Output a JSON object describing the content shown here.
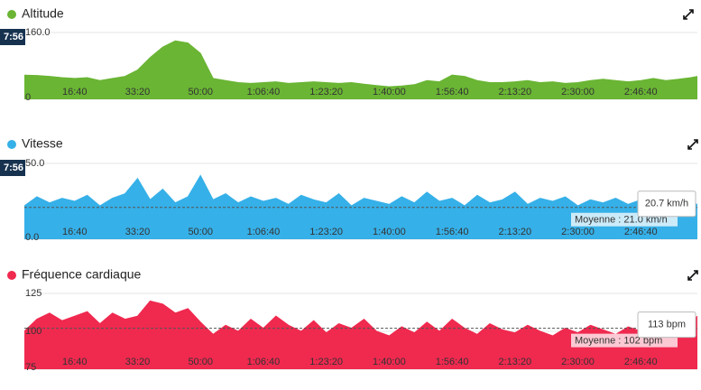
{
  "chart_data": [
    {
      "type": "area",
      "title": "Altitude",
      "color": "#6ab534",
      "cursor_label": "7:56",
      "x": [
        200,
        400,
        600,
        800,
        1000,
        1200,
        1400,
        1600,
        1800,
        2000,
        2200,
        2400,
        2600,
        2800,
        3000,
        3200,
        3400,
        3600,
        3800,
        4000,
        4200,
        4400,
        4600,
        4800,
        5000,
        5200,
        5400,
        5600,
        5800,
        6000,
        6200,
        6400,
        6600,
        6800,
        7000,
        7200,
        7400,
        7600,
        7800,
        8000,
        8200,
        8400,
        8600,
        8800,
        9000,
        9200,
        9400,
        9600,
        9800,
        10000,
        10200,
        10400,
        10600,
        10800,
        10900
      ],
      "values": [
        58,
        57,
        55,
        52,
        50,
        52,
        45,
        50,
        55,
        70,
        100,
        125,
        140,
        135,
        110,
        50,
        45,
        40,
        38,
        40,
        42,
        38,
        40,
        42,
        40,
        38,
        40,
        36,
        33,
        30,
        32,
        35,
        45,
        42,
        58,
        55,
        45,
        40,
        40,
        42,
        45,
        40,
        42,
        38,
        40,
        45,
        48,
        45,
        42,
        45,
        50,
        45,
        48,
        52,
        55
      ],
      "xlim": [
        200,
        10900
      ],
      "xticks": [
        {
          "value": 1000,
          "label": "16:40"
        },
        {
          "value": 2000,
          "label": "33:20"
        },
        {
          "value": 3000,
          "label": "50:00"
        },
        {
          "value": 4000,
          "label": "1:06:40"
        },
        {
          "value": 5000,
          "label": "1:23:20"
        },
        {
          "value": 6000,
          "label": "1:40:00"
        },
        {
          "value": 7000,
          "label": "1:56:40"
        },
        {
          "value": 8000,
          "label": "2:13:20"
        },
        {
          "value": 9000,
          "label": "2:30:00"
        },
        {
          "value": 10000,
          "label": "2:46:40"
        }
      ],
      "ylim": [
        0,
        160
      ],
      "yticks": [
        0,
        {
          "value": 160,
          "label": "160.0"
        }
      ]
    },
    {
      "type": "area",
      "title": "Vitesse",
      "color": "#36b0e8",
      "cursor_label": "7:56",
      "x": [
        200,
        400,
        600,
        800,
        1000,
        1200,
        1400,
        1600,
        1800,
        2000,
        2200,
        2400,
        2600,
        2800,
        3000,
        3200,
        3400,
        3600,
        3800,
        4000,
        4200,
        4400,
        4600,
        4800,
        5000,
        5200,
        5400,
        5600,
        5800,
        6000,
        6200,
        6400,
        6600,
        6800,
        7000,
        7200,
        7400,
        7600,
        7800,
        8000,
        8200,
        8400,
        8600,
        8800,
        9000,
        9200,
        9400,
        9600,
        9800,
        10000,
        10200,
        10400,
        10600,
        10800,
        10900
      ],
      "values": [
        22,
        28,
        24,
        27,
        25,
        29,
        22,
        27,
        30,
        40,
        26,
        33,
        24,
        28,
        42,
        26,
        30,
        24,
        28,
        25,
        27,
        23,
        29,
        26,
        24,
        30,
        22,
        27,
        25,
        23,
        28,
        24,
        31,
        25,
        27,
        22,
        29,
        24,
        26,
        31,
        23,
        27,
        25,
        28,
        22,
        26,
        24,
        27,
        23,
        26,
        22,
        25,
        27,
        24,
        23
      ],
      "average": 21.0,
      "average_label": "Moyenne : 21.0 km/h",
      "tooltip": "20.7 km/h",
      "xlim": [
        200,
        10900
      ],
      "xticks": [
        {
          "value": 1000,
          "label": "16:40"
        },
        {
          "value": 2000,
          "label": "33:20"
        },
        {
          "value": 3000,
          "label": "50:00"
        },
        {
          "value": 4000,
          "label": "1:06:40"
        },
        {
          "value": 5000,
          "label": "1:23:20"
        },
        {
          "value": 6000,
          "label": "1:40:00"
        },
        {
          "value": 7000,
          "label": "1:56:40"
        },
        {
          "value": 8000,
          "label": "2:13:20"
        },
        {
          "value": 9000,
          "label": "2:30:00"
        },
        {
          "value": 10000,
          "label": "2:46:40"
        }
      ],
      "ylim": [
        0,
        50
      ],
      "yticks": [
        {
          "value": 0,
          "label": "0.0"
        },
        {
          "value": 50,
          "label": "50.0"
        }
      ]
    },
    {
      "type": "area",
      "title": "Fréquence cardiaque",
      "color": "#f0294f",
      "x": [
        200,
        400,
        600,
        800,
        1000,
        1200,
        1400,
        1600,
        1800,
        2000,
        2200,
        2400,
        2600,
        2800,
        3000,
        3200,
        3400,
        3600,
        3800,
        4000,
        4200,
        4400,
        4600,
        4800,
        5000,
        5200,
        5400,
        5600,
        5800,
        6000,
        6200,
        6400,
        6600,
        6800,
        7000,
        7200,
        7400,
        7600,
        7800,
        8000,
        8200,
        8400,
        8600,
        8800,
        9000,
        9200,
        9400,
        9600,
        9800,
        10000,
        10200,
        10400,
        10600,
        10800,
        10900
      ],
      "values": [
        100,
        108,
        112,
        107,
        110,
        113,
        105,
        112,
        108,
        110,
        120,
        118,
        112,
        115,
        106,
        98,
        104,
        100,
        108,
        102,
        110,
        104,
        100,
        107,
        99,
        105,
        102,
        108,
        100,
        97,
        103,
        99,
        106,
        100,
        108,
        102,
        98,
        105,
        101,
        99,
        104,
        100,
        97,
        102,
        99,
        104,
        101,
        98,
        103,
        100,
        105,
        99,
        102,
        106,
        110
      ],
      "average": 102,
      "average_label": "Moyenne : 102 bpm",
      "tooltip": "113 bpm",
      "xlim": [
        200,
        10900
      ],
      "xticks": [
        {
          "value": 1000,
          "label": "16:40"
        },
        {
          "value": 2000,
          "label": "33:20"
        },
        {
          "value": 3000,
          "label": "50:00"
        },
        {
          "value": 4000,
          "label": "1:06:40"
        },
        {
          "value": 5000,
          "label": "1:23:20"
        },
        {
          "value": 6000,
          "label": "1:40:00"
        },
        {
          "value": 7000,
          "label": "1:56:40"
        },
        {
          "value": 8000,
          "label": "2:13:20"
        },
        {
          "value": 9000,
          "label": "2:30:00"
        },
        {
          "value": 10000,
          "label": "2:46:40"
        }
      ],
      "ylim": [
        75,
        125
      ],
      "yticks": [
        75,
        100,
        125
      ]
    }
  ]
}
